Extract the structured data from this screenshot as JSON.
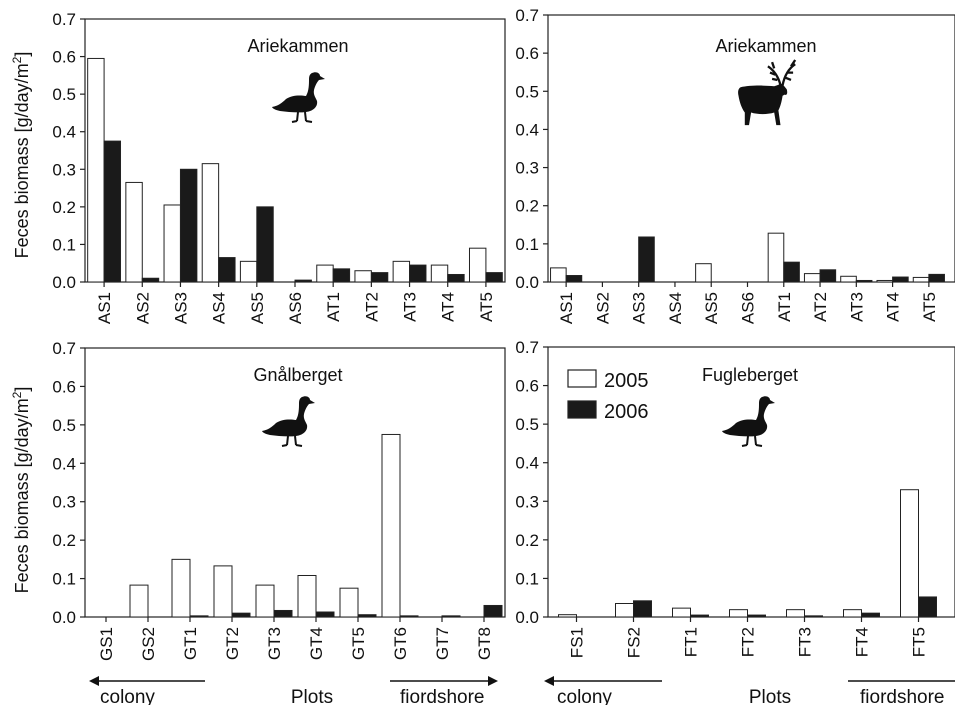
{
  "ylabel": "Feces biomass [g/day/m",
  "ylabel_sup": "2",
  "ylabel_end": "]",
  "legend": {
    "entries": [
      "2005",
      "2006"
    ]
  },
  "colors": {
    "s2005": "#ffffff",
    "s2006": "#1a1a1a",
    "axis": "#222222"
  },
  "bottom": {
    "left": {
      "colony": "colony",
      "plots": "Plots",
      "fiordshore": "fiordshore"
    },
    "right": {
      "colony": "colony",
      "plots": "Plots",
      "fiordshore": "fiordshore"
    }
  },
  "chart_data": [
    {
      "type": "bar",
      "title": "Ariekammen",
      "icon": "goose-silhouette",
      "ylim": [
        0,
        0.7
      ],
      "yticks": [
        "0.0",
        "0.1",
        "0.2",
        "0.3",
        "0.4",
        "0.5",
        "0.6",
        "0.7"
      ],
      "categories": [
        "AS1",
        "AS2",
        "AS3",
        "AS4",
        "AS5",
        "AS6",
        "AT1",
        "AT2",
        "AT3",
        "AT4",
        "AT5"
      ],
      "series": [
        {
          "name": "2005",
          "values": [
            0.595,
            0.265,
            0.205,
            0.315,
            0.055,
            0.0,
            0.045,
            0.03,
            0.055,
            0.045,
            0.09
          ]
        },
        {
          "name": "2006",
          "values": [
            0.375,
            0.01,
            0.3,
            0.065,
            0.2,
            0.005,
            0.035,
            0.025,
            0.045,
            0.02,
            0.025
          ]
        }
      ]
    },
    {
      "type": "bar",
      "title": "Ariekammen",
      "icon": "reindeer-silhouette",
      "ylim": [
        0,
        0.7
      ],
      "yticks": [
        "0.0",
        "0.1",
        "0.2",
        "0.3",
        "0.4",
        "0.5",
        "0.6",
        "0.7"
      ],
      "categories": [
        "AS1",
        "AS2",
        "AS3",
        "AS4",
        "AS5",
        "AS6",
        "AT1",
        "AT2",
        "AT3",
        "AT4",
        "AT5"
      ],
      "series": [
        {
          "name": "2005",
          "values": [
            0.037,
            0.0,
            0.0,
            0.0,
            0.048,
            0.0,
            0.128,
            0.022,
            0.015,
            0.004,
            0.012
          ]
        },
        {
          "name": "2006",
          "values": [
            0.017,
            0.0,
            0.118,
            0.0,
            0.0,
            0.0,
            0.052,
            0.032,
            0.004,
            0.013,
            0.02
          ]
        }
      ]
    },
    {
      "type": "bar",
      "title": "Gnålberget",
      "icon": "goose-silhouette",
      "ylim": [
        0,
        0.7
      ],
      "yticks": [
        "0.0",
        "0.1",
        "0.2",
        "0.3",
        "0.4",
        "0.5",
        "0.6",
        "0.7"
      ],
      "categories": [
        "GS1",
        "GS2",
        "GT1",
        "GT2",
        "GT3",
        "GT4",
        "GT5",
        "GT6",
        "GT7",
        "GT8"
      ],
      "series": [
        {
          "name": "2005",
          "values": [
            0.0,
            0.083,
            0.15,
            0.133,
            0.083,
            0.108,
            0.075,
            0.475,
            0.0,
            0.0
          ]
        },
        {
          "name": "2006",
          "values": [
            0.0,
            0.0,
            0.003,
            0.01,
            0.017,
            0.013,
            0.006,
            0.003,
            0.003,
            0.03
          ]
        }
      ]
    },
    {
      "type": "bar",
      "title": "Fugleberget",
      "icon": "goose-silhouette",
      "ylim": [
        0,
        0.7
      ],
      "yticks": [
        "0.0",
        "0.1",
        "0.2",
        "0.3",
        "0.4",
        "0.5",
        "0.6",
        "0.7"
      ],
      "categories": [
        "FS1",
        "FS2",
        "FT1",
        "FT2",
        "FT3",
        "FT4",
        "FT5"
      ],
      "series": [
        {
          "name": "2005",
          "values": [
            0.006,
            0.035,
            0.023,
            0.019,
            0.019,
            0.019,
            0.33
          ]
        },
        {
          "name": "2006",
          "values": [
            0.0,
            0.042,
            0.005,
            0.005,
            0.003,
            0.01,
            0.052
          ]
        }
      ]
    }
  ]
}
